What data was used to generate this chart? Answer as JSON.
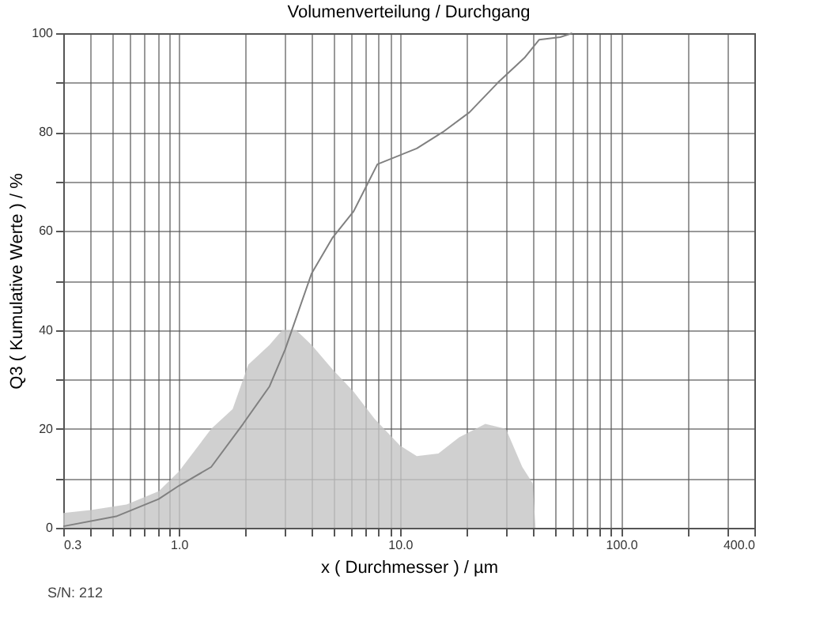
{
  "chart_data": {
    "type": "line",
    "title": "Volumenverteilung / Durchgang",
    "xlabel": "x ( Durchmesser ) / µm",
    "ylabel": "Q3 ( Kumulative Werte ) / %",
    "log": "x",
    "grid": true,
    "xlim": [
      0.3,
      400
    ],
    "ylim": [
      0,
      100
    ],
    "xticks": [
      {
        "value": 0.3,
        "label": "0.3"
      },
      {
        "value": 0.4,
        "label": null
      },
      {
        "value": 0.5,
        "label": null
      },
      {
        "value": 0.6,
        "label": null
      },
      {
        "value": 0.7,
        "label": null
      },
      {
        "value": 0.8,
        "label": null
      },
      {
        "value": 0.9,
        "label": null
      },
      {
        "value": 1,
        "label": "1.0"
      },
      {
        "value": 2,
        "label": null
      },
      {
        "value": 3,
        "label": null
      },
      {
        "value": 4,
        "label": null
      },
      {
        "value": 5,
        "label": null
      },
      {
        "value": 6,
        "label": null
      },
      {
        "value": 7,
        "label": null
      },
      {
        "value": 8,
        "label": null
      },
      {
        "value": 9,
        "label": null
      },
      {
        "value": 10,
        "label": "10.0"
      },
      {
        "value": 20,
        "label": null
      },
      {
        "value": 30,
        "label": null
      },
      {
        "value": 40,
        "label": null
      },
      {
        "value": 50,
        "label": null
      },
      {
        "value": 60,
        "label": null
      },
      {
        "value": 70,
        "label": null
      },
      {
        "value": 80,
        "label": null
      },
      {
        "value": 90,
        "label": null
      },
      {
        "value": 100,
        "label": "100.0"
      },
      {
        "value": 200,
        "label": null
      },
      {
        "value": 300,
        "label": null
      },
      {
        "value": 400,
        "label": "400.0"
      }
    ],
    "yticks": [
      0,
      {
        "value": 10,
        "label": null
      },
      20,
      {
        "value": 30,
        "label": null
      },
      40,
      {
        "value": 50,
        "label": null
      },
      60,
      {
        "value": 70,
        "label": null
      },
      80,
      {
        "value": 90,
        "label": null
      },
      100
    ],
    "series": [
      {
        "type": "area",
        "color": "#c4c4c4",
        "x": [
          0.3,
          0.4,
          0.58,
          0.81,
          1.0,
          1.4,
          1.75,
          2.06,
          2.57,
          2.94,
          3.38,
          3.98,
          4.96,
          6.17,
          7.68,
          10,
          11.9,
          14.9,
          18.5,
          24.3,
          30.1,
          35.7,
          39.8,
          41
        ],
        "values": [
          3,
          3.6,
          4.7,
          7.4,
          11.4,
          20,
          24,
          33,
          37,
          40,
          40,
          37,
          32,
          27.5,
          22,
          16.6,
          14.5,
          15,
          18.3,
          21,
          20,
          12.3,
          9,
          0
        ]
      },
      {
        "type": "line",
        "color": "#808080",
        "x": [
          0.3,
          0.52,
          0.81,
          1.0,
          1.4,
          1.95,
          2.57,
          3.02,
          3.98,
          4.96,
          6.17,
          7.9,
          11.9,
          15.6,
          20.6,
          27.7,
          36.5,
          42.6,
          53,
          60
        ],
        "values": [
          0.3,
          2.3,
          5.8,
          8.5,
          12.3,
          21,
          28.6,
          36,
          51.4,
          58.7,
          64,
          73.5,
          76.7,
          80,
          84,
          90,
          95,
          98.7,
          99.2,
          100
        ]
      }
    ],
    "annotations": [
      "S/N: 212"
    ]
  }
}
